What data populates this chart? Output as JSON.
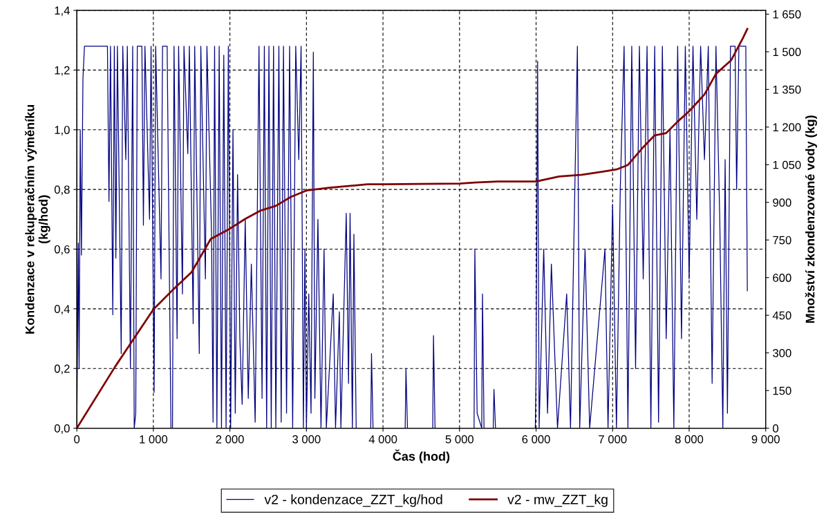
{
  "chart_data": {
    "type": "line",
    "xlabel": "Čas (hod)",
    "ylabel": "Kondenzace v rekuperačním výměníku\n(kg/hod)",
    "y2label": "Množství zkondenzované vody (kg)",
    "xlim": [
      0,
      9000
    ],
    "xticks": [
      0,
      {
        "value": 1000,
        "label": "1 000"
      },
      {
        "value": 2000,
        "label": "2 000"
      },
      {
        "value": 3000,
        "label": "3 000"
      },
      {
        "value": 4000,
        "label": "4 000"
      },
      {
        "value": 5000,
        "label": "5 000"
      },
      {
        "value": 6000,
        "label": "6 000"
      },
      {
        "value": 7000,
        "label": "7 000"
      },
      {
        "value": 8000,
        "label": "8 000"
      },
      {
        "value": 9000,
        "label": "9 000"
      }
    ],
    "ylim": [
      0,
      1.4
    ],
    "yticks": [
      {
        "value": 0,
        "label": "0,0"
      },
      {
        "value": 0.2,
        "label": "0,2"
      },
      {
        "value": 0.4,
        "label": "0,4"
      },
      {
        "value": 0.6,
        "label": "0,6"
      },
      {
        "value": 0.8,
        "label": "0,8"
      },
      {
        "value": 1.0,
        "label": "1,0"
      },
      {
        "value": 1.2,
        "label": "1,2"
      },
      {
        "value": 1.4,
        "label": "1,4"
      }
    ],
    "y2lim": [
      0,
      1665
    ],
    "y2ticks": [
      0,
      150,
      300,
      450,
      600,
      750,
      900,
      {
        "value": 1050,
        "label": "1 050"
      },
      {
        "value": 1200,
        "label": "1 200"
      },
      {
        "value": 1350,
        "label": "1 350"
      },
      {
        "value": 1500,
        "label": "1 500"
      },
      {
        "value": 1650,
        "label": "1 650"
      }
    ],
    "grid": true,
    "legend": "bottom",
    "line_style": "solid",
    "marker": "none",
    "series": [
      {
        "name": "v2 - kondenzace_ZZT_kg/hod",
        "color": "#000080",
        "x": [
          0,
          20,
          30,
          45,
          60,
          80,
          100,
          400,
          420,
          440,
          470,
          490,
          510,
          530,
          580,
          600,
          640,
          660,
          700,
          730,
          750,
          770,
          790,
          850,
          870,
          890,
          950,
          970,
          1010,
          1030,
          1100,
          1120,
          1180,
          1200,
          1230,
          1250,
          1270,
          1310,
          1330,
          1380,
          1400,
          1450,
          1470,
          1520,
          1540,
          1600,
          1620,
          1680,
          1700,
          1760,
          1780,
          1800,
          1830,
          1860,
          1890,
          1920,
          1950,
          1980,
          2010,
          2040,
          2070,
          2100,
          2130,
          2160,
          2200,
          2240,
          2280,
          2330,
          2380,
          2420,
          2450,
          2480,
          2510,
          2540,
          2570,
          2600,
          2640,
          2670,
          2700,
          2740,
          2780,
          2820,
          2860,
          2900,
          2930,
          2960,
          2980,
          3000,
          3030,
          3060,
          3090,
          3110,
          3150,
          3190,
          3230,
          3260,
          3350,
          3380,
          3430,
          3450,
          3520,
          3550,
          3570,
          3600,
          3620,
          3650,
          3840,
          3850,
          3870,
          4290,
          4300,
          4320,
          4650,
          4660,
          4680,
          5190,
          5200,
          5230,
          5290,
          5300,
          5320,
          5440,
          5450,
          5470,
          5990,
          6000,
          6020,
          6040,
          6100,
          6150,
          6200,
          6280,
          6400,
          6450,
          6540,
          6570,
          6640,
          6700,
          6900,
          6940,
          7000,
          7050,
          7100,
          7150,
          7200,
          7250,
          7300,
          7350,
          7400,
          7450,
          7500,
          7550,
          7600,
          7650,
          7700,
          7750,
          7800,
          7850,
          7900,
          7950,
          8000,
          8050,
          8100,
          8150,
          8200,
          8250,
          8300,
          8350,
          8400,
          8440,
          8470,
          8500,
          8540,
          8600,
          8620,
          8650,
          8740,
          8760
        ],
        "values": [
          0,
          0.62,
          0.2,
          1.0,
          0.58,
          1.17,
          1.28,
          1.28,
          0.76,
          1.28,
          0.38,
          1.28,
          0.57,
          1.28,
          0.25,
          1.28,
          0.9,
          1.28,
          0.2,
          1.28,
          0,
          0.05,
          1.28,
          1.28,
          0.68,
          1.28,
          0.7,
          1.28,
          0.12,
          1.28,
          0.5,
          1.28,
          1.28,
          0.75,
          0,
          0,
          1.28,
          0.3,
          1.28,
          0.45,
          1.28,
          0.92,
          1.28,
          0.35,
          1.28,
          0.25,
          1.28,
          0.5,
          1.28,
          0.65,
          0.02,
          1.28,
          0,
          1.28,
          0,
          1.25,
          0,
          1.28,
          0,
          1.0,
          0.05,
          0.85,
          0.3,
          0.08,
          0.7,
          0.1,
          0.55,
          0.02,
          1.28,
          0.1,
          1.28,
          0,
          1.28,
          0,
          1.28,
          0,
          1.28,
          0.02,
          1.28,
          0.05,
          1.28,
          0,
          1.28,
          0.9,
          1.28,
          0,
          0.6,
          0,
          0.45,
          0.05,
          1.26,
          0.1,
          0.7,
          0,
          0.6,
          0,
          0.45,
          0,
          0.39,
          0,
          0.72,
          0.15,
          0.72,
          0,
          0.65,
          0,
          0,
          0.25,
          0,
          0,
          0.2,
          0,
          0,
          0.31,
          0,
          0,
          0.6,
          0.05,
          0,
          0.45,
          0,
          0,
          0.13,
          0,
          0,
          0.2,
          1.23,
          0,
          0.6,
          0.05,
          0.55,
          0,
          0.45,
          0,
          1.28,
          0,
          0.6,
          0,
          0.6,
          0,
          0.75,
          0,
          0.8,
          1.28,
          0,
          1.28,
          0.2,
          1.28,
          0.5,
          1.28,
          0,
          1.28,
          0.02,
          1.28,
          0.3,
          1.0,
          0,
          1.28,
          0.3,
          1.28,
          0.5,
          1.28,
          0.7,
          1.28,
          0.9,
          1.28,
          0.15,
          1.28,
          0.7,
          0,
          0.9,
          0.05,
          1.28,
          1.28,
          0.8,
          1.28,
          1.28,
          0.46
        ]
      },
      {
        "name": "v2 - mw_ZZT_kg",
        "color": "#800000",
        "axis": "y2",
        "x": [
          0,
          500,
          1000,
          1250,
          1500,
          1750,
          2000,
          2200,
          2400,
          2600,
          2800,
          3000,
          3300,
          3800,
          4000,
          5000,
          5200,
          5500,
          6000,
          6300,
          6600,
          6900,
          7050,
          7200,
          7400,
          7550,
          7700,
          7850,
          8000,
          8200,
          8350,
          8550,
          8700,
          8760
        ],
        "values": [
          0,
          245,
          473,
          550,
          622,
          754,
          795,
          834,
          867,
          886,
          922,
          947,
          958,
          972,
          972,
          975,
          979,
          983,
          983,
          1003,
          1010,
          1024,
          1031,
          1049,
          1120,
          1167,
          1176,
          1222,
          1263,
          1330,
          1412,
          1467,
          1553,
          1591
        ]
      }
    ]
  }
}
